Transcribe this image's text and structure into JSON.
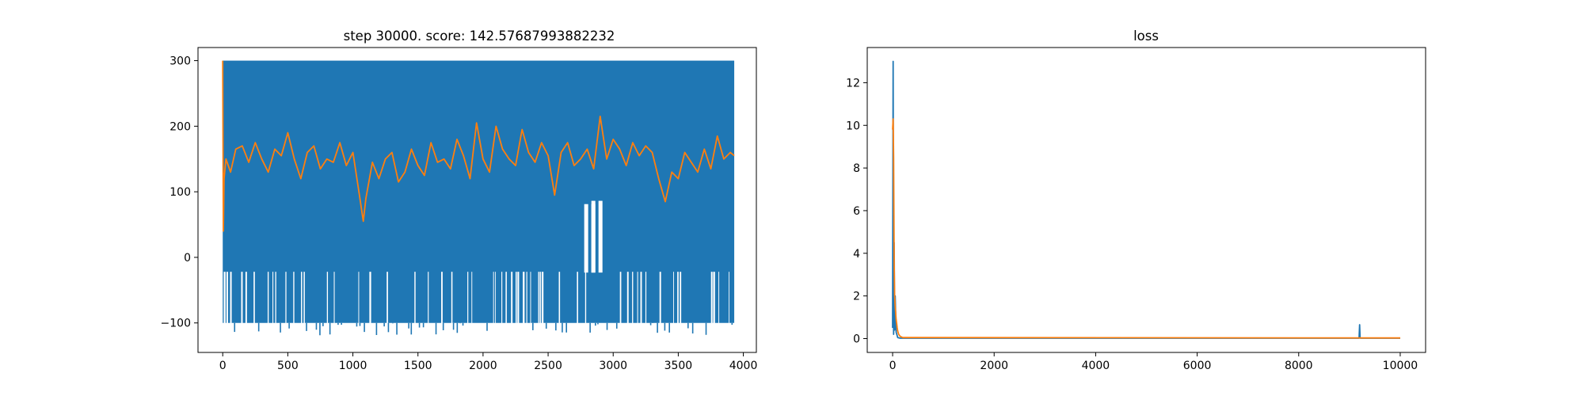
{
  "chart_data": [
    {
      "type": "line",
      "title": "step 30000. score: 142.57687993882232",
      "xlim": [
        -190,
        4100
      ],
      "ylim": [
        -145,
        320
      ],
      "xticks": [
        0,
        500,
        1000,
        1500,
        2000,
        2500,
        3000,
        3500,
        4000
      ],
      "yticks": [
        -100,
        0,
        100,
        200,
        300
      ],
      "x_tick_labels": [
        "0",
        "500",
        "1000",
        "1500",
        "2000",
        "2500",
        "3000",
        "3500",
        "4000"
      ],
      "y_tick_labels": [
        "−100",
        "0",
        "100",
        "200",
        "300"
      ],
      "series": [
        {
          "color": "#1f77b4",
          "style": "dense oscillation between upper and lower envelopes",
          "x_range": [
            0,
            3930
          ],
          "upper_envelope": 300,
          "lower_envelope": -100,
          "lower_dips_to": -120,
          "gaps_upper_bound": -22,
          "isolated_spikes": [
            {
              "x": 2820,
              "y": 80
            },
            {
              "x": 2875,
              "y": 85
            }
          ]
        },
        {
          "color": "#ff7f0e",
          "style": "moving average",
          "x": [
            0,
            5,
            10,
            25,
            60,
            100,
            150,
            200,
            250,
            300,
            350,
            400,
            450,
            500,
            550,
            600,
            650,
            700,
            750,
            800,
            850,
            900,
            950,
            1000,
            1050,
            1080,
            1100,
            1150,
            1200,
            1250,
            1300,
            1350,
            1400,
            1450,
            1500,
            1550,
            1600,
            1650,
            1700,
            1750,
            1800,
            1850,
            1900,
            1950,
            2000,
            2050,
            2100,
            2150,
            2200,
            2250,
            2300,
            2350,
            2400,
            2450,
            2500,
            2550,
            2600,
            2650,
            2700,
            2750,
            2800,
            2850,
            2900,
            2950,
            3000,
            3050,
            3100,
            3150,
            3200,
            3250,
            3300,
            3350,
            3400,
            3450,
            3500,
            3550,
            3600,
            3650,
            3700,
            3750,
            3800,
            3850,
            3900,
            3930
          ],
          "y": [
            300,
            40,
            120,
            150,
            130,
            165,
            170,
            145,
            175,
            150,
            130,
            165,
            155,
            190,
            150,
            120,
            160,
            170,
            135,
            150,
            145,
            175,
            140,
            160,
            95,
            55,
            90,
            145,
            120,
            150,
            160,
            115,
            130,
            165,
            140,
            125,
            175,
            145,
            150,
            135,
            180,
            155,
            120,
            205,
            150,
            130,
            200,
            165,
            150,
            140,
            195,
            160,
            145,
            175,
            155,
            95,
            160,
            175,
            140,
            150,
            165,
            135,
            215,
            150,
            180,
            165,
            140,
            175,
            155,
            170,
            160,
            120,
            85,
            130,
            120,
            160,
            145,
            130,
            165,
            135,
            185,
            150,
            160,
            155
          ]
        }
      ]
    },
    {
      "type": "line",
      "title": "loss",
      "xlim": [
        -500,
        10500
      ],
      "ylim": [
        -0.65,
        13.65
      ],
      "xticks": [
        0,
        2000,
        4000,
        6000,
        8000,
        10000
      ],
      "yticks": [
        0,
        2,
        4,
        6,
        8,
        10,
        12
      ],
      "x_tick_labels": [
        "0",
        "2000",
        "4000",
        "6000",
        "8000",
        "10000"
      ],
      "y_tick_labels": [
        "0",
        "2",
        "4",
        "6",
        "8",
        "10",
        "12"
      ],
      "series": [
        {
          "color": "#1f77b4",
          "x": [
            0,
            10,
            20,
            30,
            40,
            50,
            70,
            100,
            150,
            9190,
            9200,
            9210,
            10000
          ],
          "y": [
            0.5,
            13,
            0.2,
            4.5,
            0.4,
            2.0,
            0.3,
            0.05,
            0.02,
            0.02,
            0.65,
            0.02,
            0.02
          ]
        },
        {
          "color": "#ff7f0e",
          "x": [
            0,
            10,
            20,
            30,
            40,
            50,
            60,
            70,
            80,
            90,
            100,
            120,
            150,
            200,
            10000
          ],
          "y": [
            9.8,
            10.3,
            8.5,
            3.5,
            2.0,
            1.5,
            1.2,
            0.9,
            0.7,
            0.5,
            0.35,
            0.2,
            0.1,
            0.05,
            0.03
          ]
        }
      ]
    }
  ]
}
